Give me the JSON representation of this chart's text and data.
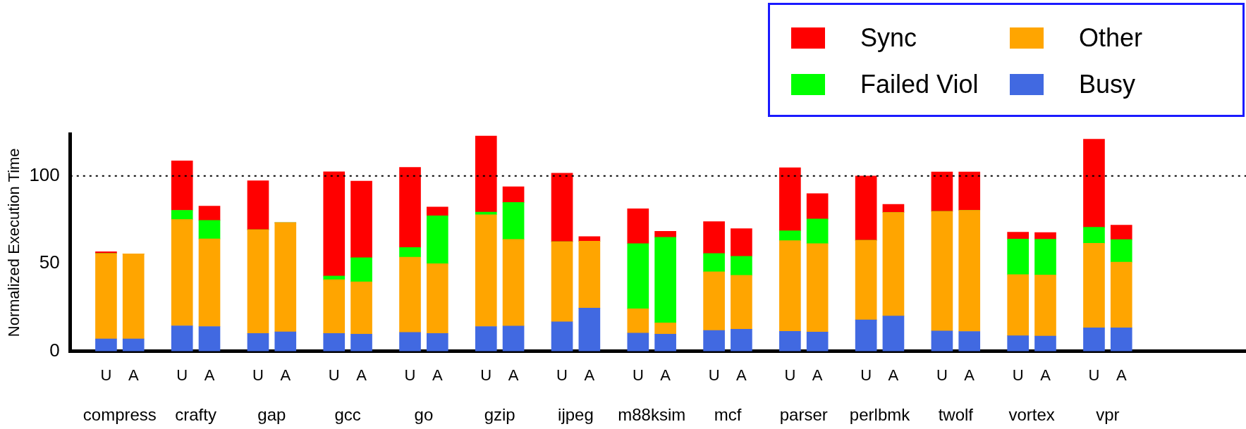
{
  "chart_data": {
    "type": "bar",
    "stacked": true,
    "ylabel": "Normalized Execution Time",
    "categories": [
      "U",
      "A",
      "U",
      "A",
      "U",
      "A",
      "U",
      "A",
      "U",
      "A",
      "U",
      "A",
      "U",
      "A",
      "U",
      "A",
      "U",
      "A",
      "U",
      "A",
      "U",
      "A",
      "U",
      "A",
      "U",
      "A",
      "U",
      "A"
    ],
    "annotations": [
      "compress",
      "crafty",
      "gap",
      "gcc",
      "go",
      "gzip",
      "ijpeg",
      "m88ksim",
      "mcf",
      "parser",
      "perlbmk",
      "twolf",
      "vortex",
      "vpr"
    ],
    "series": [
      {
        "name": "Busy",
        "color": "#4169e1",
        "values": [
          7,
          7,
          14.5,
          14.1,
          10.2,
          11.1,
          10.2,
          9.8,
          10.8,
          10.2,
          14.1,
          14.4,
          16.8,
          24.6,
          10.4,
          9.8,
          11.9,
          12.6,
          11.4,
          11,
          17.9,
          20.1,
          11.6,
          11.3,
          8.8,
          8.6,
          13.4,
          13.4
        ]
      },
      {
        "name": "Other",
        "color": "#ffa500",
        "values": [
          48.8,
          48.6,
          60.6,
          50,
          59.1,
          62.2,
          30.6,
          29.8,
          42.9,
          39.7,
          63.8,
          49.4,
          45.7,
          38.2,
          13.8,
          6.4,
          33.4,
          30.7,
          51.7,
          50.4,
          45.4,
          59.1,
          68.2,
          69.1,
          34.9,
          34.9,
          48.2,
          37.4
        ]
      },
      {
        "name": "Failed Viol",
        "color": "#00ff00",
        "values": [
          0,
          0,
          5.3,
          10.5,
          0,
          0,
          2.1,
          13.7,
          5.5,
          27.4,
          1.5,
          21.1,
          0,
          0,
          37.2,
          48.8,
          10.5,
          10.9,
          5.6,
          14,
          0,
          0,
          0,
          0,
          20.3,
          20.4,
          9.1,
          12.9
        ]
      },
      {
        "name": "Sync",
        "color": "#ff0000",
        "values": [
          1,
          0,
          28.2,
          8.2,
          27.9,
          0,
          59.5,
          43.7,
          45.7,
          5,
          43.4,
          8.9,
          39.1,
          2.6,
          19.9,
          3.4,
          18.1,
          15.7,
          36,
          14.5,
          36.7,
          4.6,
          22.5,
          21.9,
          3.9,
          3.8,
          50.3,
          8.2
        ]
      }
    ],
    "ylim": [
      0,
      124
    ],
    "yticks": [
      0,
      50,
      100
    ],
    "ref_lines": [
      {
        "axis": "y",
        "value": 100,
        "line_style": "dotted",
        "color": "#000000"
      }
    ],
    "legend": "top right",
    "grid": false
  }
}
